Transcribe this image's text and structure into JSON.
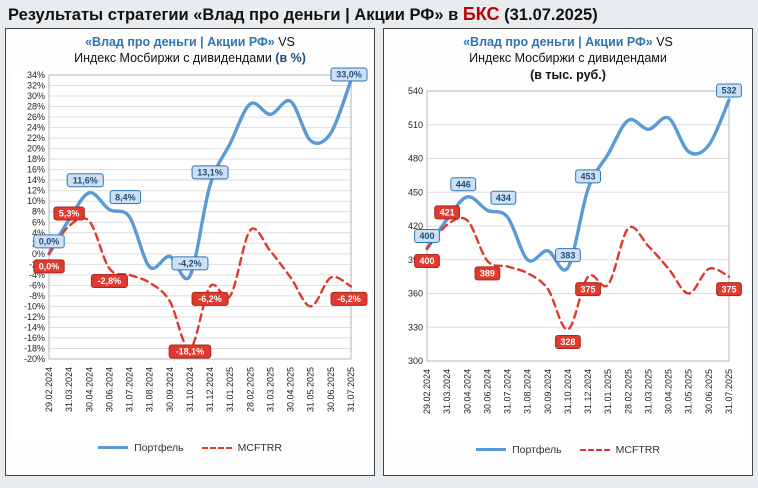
{
  "page": {
    "title_prefix": "Результаты стратегии «Влад про деньги | Акции РФ» в ",
    "title_brand": "БКС",
    "title_suffix": " (31.07.2025)"
  },
  "colors": {
    "portfolio_line": "#5b9bd5",
    "benchmark_line": "#e0392e",
    "brand_red": "#c00000",
    "title_blue": "#2e75b6"
  },
  "chart_data": [
    {
      "type": "line",
      "title_strategy": "«Влад про деньги | Акции РФ»",
      "title_vs": " VS",
      "title_benchmark": "Индекс Мосбиржи с дивидендами",
      "title_unit": "(в %)",
      "categories": [
        "29.02.2024",
        "31.03.2024",
        "30.04.2024",
        "30.06.2024",
        "31.07.2024",
        "31.08.2024",
        "30.09.2024",
        "31.10.2024",
        "31.12.2024",
        "31.01.2025",
        "28.02.2025",
        "31.03.2025",
        "30.04.2025",
        "31.05.2025",
        "30.06.2025",
        "31.07.2025"
      ],
      "ylim": [
        -20,
        34
      ],
      "ytick_step": 2,
      "ytick_format": "percent",
      "grid": true,
      "legend_position": "bottom",
      "series": [
        {
          "name": "Портфель",
          "color": "#5b9bd5",
          "style": "solid",
          "label_bg": "#cfe0f4",
          "label_border": "#2e75b6",
          "label_text": "#1f4e79",
          "values": [
            0.0,
            6.5,
            11.6,
            8.4,
            7.0,
            -2.5,
            -0.5,
            -4.2,
            13.1,
            21.0,
            28.5,
            26.5,
            29.0,
            21.5,
            23.0,
            33.0
          ],
          "labels": [
            {
              "i": 0,
              "text": "0,0%",
              "pos": "above"
            },
            {
              "i": 2,
              "text": "11,6%",
              "pos": "above",
              "dx": -4
            },
            {
              "i": 3,
              "text": "8,4%",
              "pos": "above",
              "dx": 16
            },
            {
              "i": 7,
              "text": "-4,2%",
              "pos": "above"
            },
            {
              "i": 8,
              "text": "13,1%",
              "pos": "above"
            },
            {
              "i": 15,
              "text": "33,0%",
              "pos": "above"
            }
          ]
        },
        {
          "name": "MCFTRR",
          "color": "#e0392e",
          "style": "dashed",
          "label_bg": "#e0392e",
          "label_border": "#a82a22",
          "label_text": "#ffffff",
          "values": [
            0.0,
            5.3,
            6.2,
            -2.8,
            -4.0,
            -5.5,
            -9.0,
            -18.1,
            -6.2,
            -8.0,
            4.5,
            0.5,
            -4.5,
            -10.0,
            -4.5,
            -6.2
          ],
          "labels": [
            {
              "i": 0,
              "text": "0,0%",
              "pos": "below"
            },
            {
              "i": 1,
              "text": "5,3%",
              "pos": "above"
            },
            {
              "i": 3,
              "text": "-2,8%",
              "pos": "below"
            },
            {
              "i": 7,
              "text": "-18,1%",
              "pos": "below"
            },
            {
              "i": 8,
              "text": "-6,2%",
              "pos": "below"
            },
            {
              "i": 15,
              "text": "-6,2%",
              "pos": "below"
            }
          ]
        }
      ]
    },
    {
      "type": "line",
      "title_strategy": "«Влад про деньги | Акции РФ»",
      "title_vs": " VS",
      "title_benchmark": "Индекс Мосбиржи с дивидендами",
      "title_unit": "(в тыс. руб.)",
      "categories": [
        "29.02.2024",
        "31.03.2024",
        "30.04.2024",
        "30.06.2024",
        "31.07.2024",
        "31.08.2024",
        "30.09.2024",
        "31.10.2024",
        "31.12.2024",
        "31.01.2025",
        "28.02.2025",
        "31.03.2025",
        "30.04.2025",
        "31.05.2025",
        "30.06.2025",
        "31.07.2025"
      ],
      "ylim": [
        300,
        540
      ],
      "ytick_step": 30,
      "ytick_format": "int",
      "grid": true,
      "legend_position": "bottom",
      "series": [
        {
          "name": "Портфель",
          "color": "#5b9bd5",
          "style": "solid",
          "label_bg": "#cfe0f4",
          "label_border": "#2e75b6",
          "label_text": "#1f4e79",
          "values": [
            400,
            426,
            446,
            434,
            428,
            390,
            398,
            383,
            453,
            484,
            514,
            506,
            516,
            486,
            492,
            532
          ],
          "labels": [
            {
              "i": 0,
              "text": "400",
              "pos": "above"
            },
            {
              "i": 2,
              "text": "446",
              "pos": "above",
              "dx": -4
            },
            {
              "i": 3,
              "text": "434",
              "pos": "above",
              "dx": 16
            },
            {
              "i": 7,
              "text": "383",
              "pos": "above"
            },
            {
              "i": 8,
              "text": "453",
              "pos": "above"
            },
            {
              "i": 15,
              "text": "532",
              "pos": "above"
            }
          ]
        },
        {
          "name": "MCFTRR",
          "color": "#e0392e",
          "style": "dashed",
          "label_bg": "#e0392e",
          "label_border": "#a82a22",
          "label_text": "#ffffff",
          "values": [
            400,
            421,
            425,
            389,
            384,
            378,
            364,
            328,
            375,
            368,
            418,
            402,
            382,
            360,
            382,
            375
          ],
          "labels": [
            {
              "i": 0,
              "text": "400",
              "pos": "below"
            },
            {
              "i": 1,
              "text": "421",
              "pos": "above"
            },
            {
              "i": 3,
              "text": "389",
              "pos": "below"
            },
            {
              "i": 7,
              "text": "328",
              "pos": "below"
            },
            {
              "i": 8,
              "text": "375",
              "pos": "below"
            },
            {
              "i": 15,
              "text": "375",
              "pos": "below"
            }
          ]
        }
      ]
    }
  ]
}
